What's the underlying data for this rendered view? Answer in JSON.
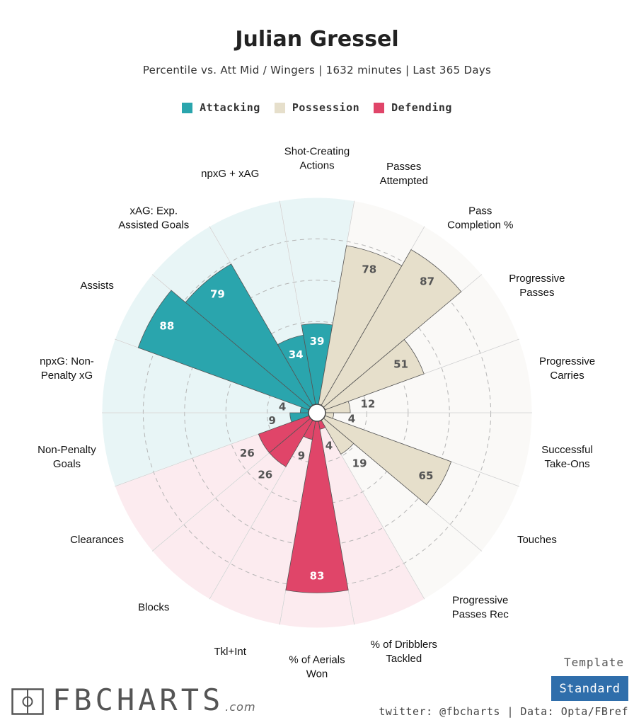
{
  "title": "Julian Gressel",
  "subtitle": "Percentile vs. Att Mid / Wingers | 1632 minutes | Last 365 Days",
  "legend": [
    {
      "label": "Attacking",
      "color": "#2aa5ad"
    },
    {
      "label": "Possession",
      "color": "#e6dfcb"
    },
    {
      "label": "Defending",
      "color": "#e04569"
    }
  ],
  "chart_data": {
    "type": "polar-bar",
    "range": [
      0,
      100
    ],
    "grid": true,
    "categories": [
      "Shot-Creating Actions",
      "Passes Attempted",
      "Pass Completion %",
      "Progressive Passes",
      "Progressive Carries",
      "Successful Take-Ons",
      "Touches",
      "Progressive Passes Rec",
      "% of Dribblers Tackled",
      "% of Aerials Won",
      "Tkl+Int",
      "Blocks",
      "Clearances",
      "Non-Penalty Goals",
      "npxG: Non-Penalty xG",
      "Assists",
      "xAG: Exp. Assisted Goals",
      "npxG + xAG"
    ],
    "values": [
      39,
      78,
      87,
      51,
      12,
      4,
      65,
      19,
      4,
      83,
      9,
      26,
      26,
      9,
      4,
      88,
      79,
      34
    ],
    "groups": [
      "Attacking",
      "Possession",
      "Possession",
      "Possession",
      "Possession",
      "Possession",
      "Possession",
      "Possession",
      "Defending",
      "Defending",
      "Defending",
      "Defending",
      "Defending",
      "Attacking",
      "Attacking",
      "Attacking",
      "Attacking",
      "Attacking"
    ]
  },
  "axis_labels": [
    {
      "line1": "Shot-Creating",
      "line2": "Actions"
    },
    {
      "line1": "Passes",
      "line2": "Attempted"
    },
    {
      "line1": "Pass",
      "line2": "Completion %"
    },
    {
      "line1": "Progressive",
      "line2": "Passes"
    },
    {
      "line1": "Progressive",
      "line2": "Carries"
    },
    {
      "line1": "Successful",
      "line2": "Take-Ons"
    },
    {
      "line1": "Touches",
      "line2": ""
    },
    {
      "line1": "Progressive",
      "line2": "Passes Rec"
    },
    {
      "line1": "% of Dribblers",
      "line2": "Tackled"
    },
    {
      "line1": "% of Aerials",
      "line2": "Won"
    },
    {
      "line1": "Tkl+Int",
      "line2": ""
    },
    {
      "line1": "Blocks",
      "line2": ""
    },
    {
      "line1": "Clearances",
      "line2": ""
    },
    {
      "line1": "Non-Penalty",
      "line2": "Goals"
    },
    {
      "line1": "npxG: Non-",
      "line2": "Penalty xG"
    },
    {
      "line1": "Assists",
      "line2": ""
    },
    {
      "line1": "xAG: Exp.",
      "line2": "Assisted Goals"
    },
    {
      "line1": "npxG + xAG",
      "line2": ""
    }
  ],
  "background_colors": {
    "Attacking": "#e8f5f6",
    "Possession": "#faf9f7",
    "Defending": "#fcebef"
  },
  "brand": {
    "name": "FBCHARTS",
    "suffix": ".com",
    "logo_icon": "pitch-icon"
  },
  "template": {
    "label": "Template",
    "button": "Standard"
  },
  "footer": "twitter: @fbcharts | Data: Opta/FBref"
}
